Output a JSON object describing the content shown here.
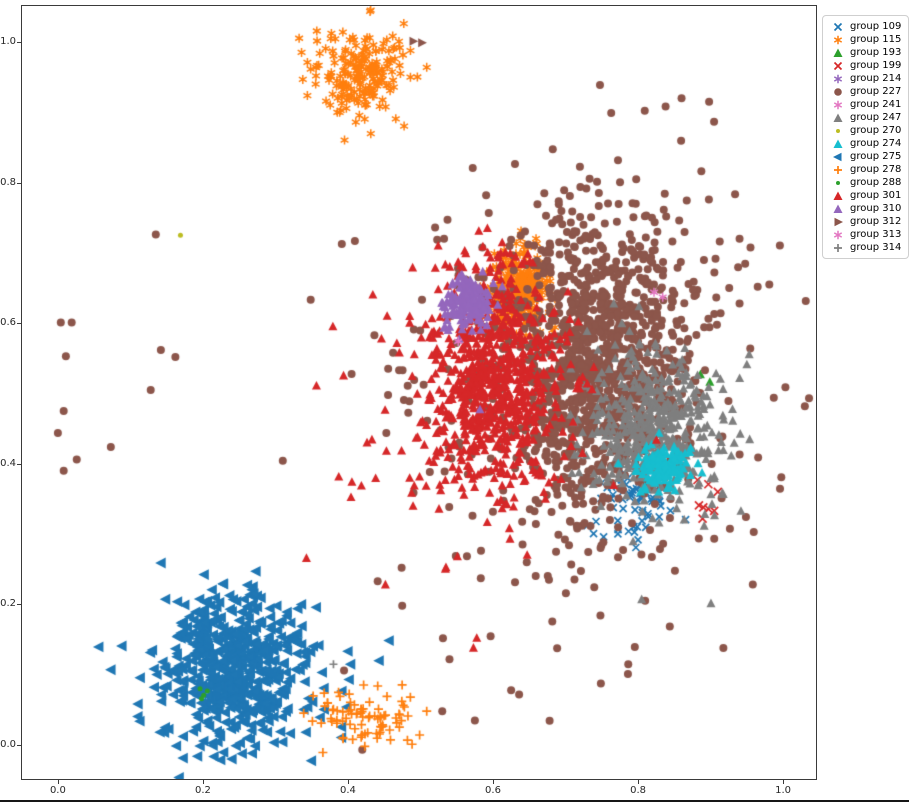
{
  "figure": {
    "background": "#ffffff",
    "bottom_border_color": "#161616",
    "spine_color": "#3a3a3a",
    "tick_label_color": "#262626"
  },
  "axes": {
    "xlim": [
      -0.0495,
      1.0454
    ],
    "ylim": [
      -0.0482,
      1.0511
    ],
    "x_ticks": [
      {
        "value": 0.0,
        "label": "0.0"
      },
      {
        "value": 0.2,
        "label": "0.2"
      },
      {
        "value": 0.4,
        "label": "0.4"
      },
      {
        "value": 0.6,
        "label": "0.6"
      },
      {
        "value": 0.8,
        "label": "0.8"
      },
      {
        "value": 1.0,
        "label": "1.0"
      }
    ],
    "y_ticks": [
      {
        "value": 0.0,
        "label": "0.0"
      },
      {
        "value": 0.2,
        "label": "0.2"
      },
      {
        "value": 0.4,
        "label": "0.4"
      },
      {
        "value": 0.6,
        "label": "0.6"
      },
      {
        "value": 0.8,
        "label": "0.8"
      },
      {
        "value": 1.0,
        "label": "1.0"
      }
    ]
  },
  "legend": {
    "position": "upper-right-outside"
  },
  "chart_data": {
    "type": "scatter",
    "title": "",
    "xlabel": "",
    "ylabel": "",
    "grid": false,
    "note": "Dense clusters are summarized as gaussian components {cx,cy,sx,sy,n}; sparse/outlier markers are explicit [x,y] points. Values estimated from axis ticks.",
    "render_seed": 1234,
    "groups": [
      {
        "name": "group 109",
        "color": "#1f77b4",
        "marker": "x",
        "size": 7,
        "clusters": [
          {
            "cx": 0.792,
            "cy": 0.353,
            "sx": 0.03,
            "sy": 0.024,
            "n": 70
          }
        ],
        "points": [
          [
            0.795,
            0.303
          ],
          [
            0.8,
            0.292
          ],
          [
            0.797,
            0.281
          ],
          [
            0.742,
            0.318
          ],
          [
            0.73,
            0.312
          ]
        ]
      },
      {
        "name": "group 115",
        "color": "#ff7f0e",
        "marker": "star",
        "size": 9,
        "clusters": [
          {
            "cx": 0.421,
            "cy": 0.956,
            "sx": 0.032,
            "sy": 0.03,
            "n": 210
          },
          {
            "cx": 0.637,
            "cy": 0.65,
            "sx": 0.019,
            "sy": 0.028,
            "n": 340
          }
        ],
        "points": []
      },
      {
        "name": "group 193",
        "color": "#2ca02c",
        "marker": "triangle-up",
        "size": 10,
        "clusters": [],
        "points": [
          [
            0.886,
            0.527
          ],
          [
            0.899,
            0.516
          ]
        ]
      },
      {
        "name": "group 199",
        "color": "#d62728",
        "marker": "x",
        "size": 8,
        "clusters": [],
        "points": [
          [
            0.882,
            0.377
          ],
          [
            0.897,
            0.371
          ],
          [
            0.884,
            0.341
          ],
          [
            0.89,
            0.338
          ],
          [
            0.897,
            0.336
          ],
          [
            0.905,
            0.333
          ],
          [
            0.889,
            0.322
          ],
          [
            0.91,
            0.36
          ]
        ]
      },
      {
        "name": "group 214",
        "color": "#9467bd",
        "marker": "star",
        "size": 9,
        "clusters": [],
        "points": [
          [
            0.564,
            0.637
          ]
        ]
      },
      {
        "name": "group 227",
        "color": "#8c564b",
        "marker": "circle",
        "size": 8,
        "clusters": [
          {
            "cx": 0.747,
            "cy": 0.548,
            "sx": 0.062,
            "sy": 0.106,
            "n": 1050
          },
          {
            "cx": 0.73,
            "cy": 0.5,
            "sx": 0.14,
            "sy": 0.17,
            "n": 330
          }
        ],
        "points": [
          [
            0.004,
            0.601
          ],
          [
            0.019,
            0.601
          ],
          [
            0.135,
            0.726
          ],
          [
            0.011,
            0.553
          ],
          [
            0.008,
            0.475
          ],
          [
            0.0,
            0.444
          ],
          [
            0.026,
            0.406
          ],
          [
            0.008,
            0.39
          ],
          [
            0.142,
            0.562
          ],
          [
            0.162,
            0.552
          ],
          [
            0.128,
            0.505
          ],
          [
            0.073,
            0.424
          ],
          [
            0.838,
            0.908
          ],
          [
            0.86,
            0.92
          ],
          [
            0.898,
            0.915
          ],
          [
            0.94,
            0.72
          ],
          [
            0.965,
            0.652
          ],
          [
            0.94,
            0.628
          ],
          [
            0.531,
            0.152
          ],
          [
            0.54,
            0.122
          ],
          [
            0.53,
            0.048
          ],
          [
            0.575,
            0.035
          ],
          [
            0.636,
            0.072
          ]
        ]
      },
      {
        "name": "group 241",
        "color": "#e377c2",
        "marker": "star",
        "size": 9,
        "clusters": [],
        "points": [
          [
            0.822,
            0.644
          ],
          [
            0.834,
            0.637
          ]
        ]
      },
      {
        "name": "group 247",
        "color": "#7f7f7f",
        "marker": "triangle-up",
        "size": 10,
        "clusters": [
          {
            "cx": 0.816,
            "cy": 0.45,
            "sx": 0.048,
            "sy": 0.055,
            "n": 400
          },
          {
            "cx": 0.86,
            "cy": 0.43,
            "sx": 0.055,
            "sy": 0.065,
            "n": 60
          }
        ],
        "points": [
          [
            0.829,
            0.316
          ],
          [
            0.805,
            0.207
          ]
        ]
      },
      {
        "name": "group 270",
        "color": "#bcbd22",
        "marker": "dot",
        "size": 5,
        "clusters": [],
        "points": [
          [
            0.169,
            0.725
          ]
        ]
      },
      {
        "name": "group 274",
        "color": "#17becf",
        "marker": "triangle-up",
        "size": 10,
        "clusters": [
          {
            "cx": 0.837,
            "cy": 0.396,
            "sx": 0.02,
            "sy": 0.015,
            "n": 130
          }
        ],
        "points": []
      },
      {
        "name": "group 275",
        "color": "#1f77b4",
        "marker": "triangle-left",
        "size": 12,
        "clusters": [
          {
            "cx": 0.245,
            "cy": 0.11,
            "sx": 0.05,
            "sy": 0.053,
            "n": 560
          },
          {
            "cx": 0.245,
            "cy": 0.112,
            "sx": 0.085,
            "sy": 0.08,
            "n": 55
          }
        ],
        "points": []
      },
      {
        "name": "group 278",
        "color": "#ff7f0e",
        "marker": "plus",
        "size": 9,
        "clusters": [
          {
            "cx": 0.428,
            "cy": 0.042,
            "sx": 0.036,
            "sy": 0.019,
            "n": 85
          }
        ],
        "points": [
          [
            0.387,
            0.075
          ]
        ]
      },
      {
        "name": "group 288",
        "color": "#2ca02c",
        "marker": "dot",
        "size": 5,
        "clusters": [],
        "points": [
          [
            0.196,
            0.08
          ],
          [
            0.201,
            0.071
          ],
          [
            0.206,
            0.077
          ],
          [
            0.198,
            0.066
          ]
        ]
      },
      {
        "name": "group 301",
        "color": "#d62728",
        "marker": "triangle-up",
        "size": 10,
        "clusters": [
          {
            "cx": 0.602,
            "cy": 0.52,
            "sx": 0.042,
            "sy": 0.078,
            "n": 700
          },
          {
            "cx": 0.565,
            "cy": 0.47,
            "sx": 0.085,
            "sy": 0.095,
            "n": 130
          }
        ],
        "points": []
      },
      {
        "name": "group 310",
        "color": "#9467bd",
        "marker": "triangle-up",
        "size": 10,
        "clusters": [
          {
            "cx": 0.565,
            "cy": 0.628,
            "sx": 0.016,
            "sy": 0.02,
            "n": 180
          }
        ],
        "points": [
          [
            0.582,
            0.477
          ]
        ]
      },
      {
        "name": "group 312",
        "color": "#8c564b",
        "marker": "triangle-right",
        "size": 10,
        "clusters": [],
        "points": [
          [
            0.49,
            1.001
          ],
          [
            0.502,
            0.999
          ]
        ]
      },
      {
        "name": "group 313",
        "color": "#e377c2",
        "marker": "star",
        "size": 9,
        "clusters": [],
        "points": [
          [
            0.552,
            0.574
          ]
        ]
      },
      {
        "name": "group 314",
        "color": "#7f7f7f",
        "marker": "plus",
        "size": 8,
        "clusters": [],
        "points": [
          [
            0.38,
            0.115
          ]
        ]
      }
    ]
  }
}
